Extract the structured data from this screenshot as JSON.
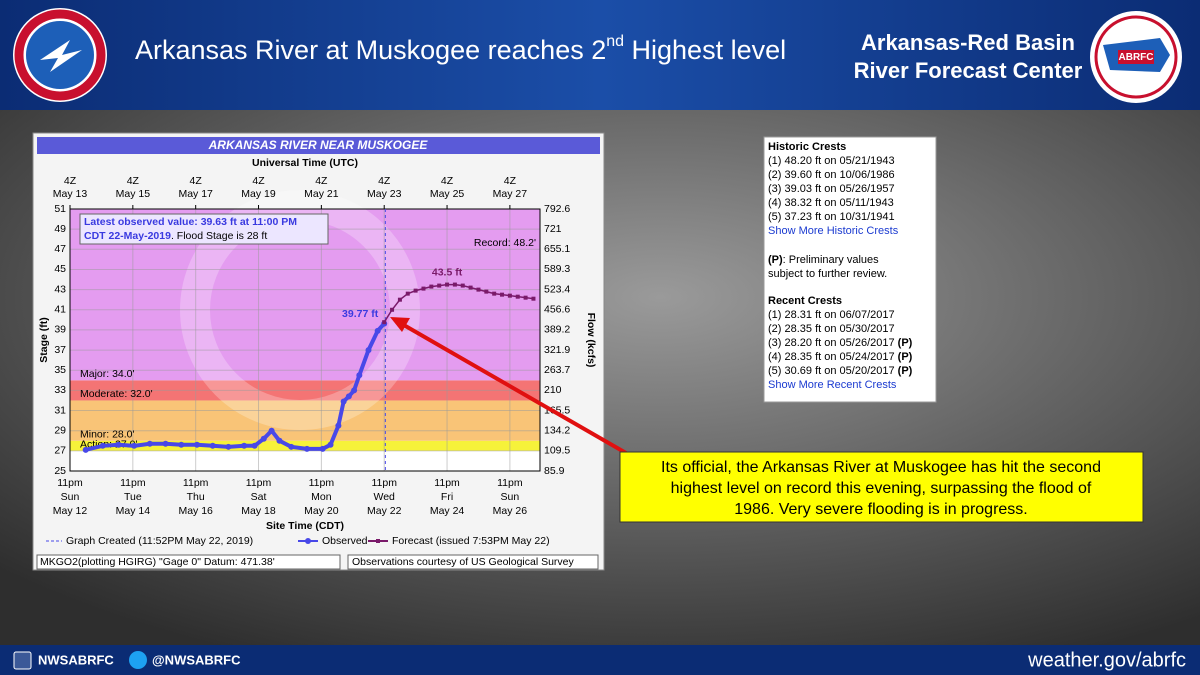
{
  "header": {
    "title": [
      "Arkansas River at Muskogee reaches 2",
      "nd",
      " Highest level"
    ],
    "center": [
      "Arkansas-Red Basin",
      "River Forecast Center"
    ],
    "logo_text": "ABRFC"
  },
  "chart_data": {
    "type": "line",
    "title": "ARKANSAS RIVER NEAR MUSKOGEE",
    "top_axis_label": "Universal Time (UTC)",
    "x_label": "Site Time (CDT)",
    "y_label": "Stage (ft)",
    "y2_label": "Flow (kcfs)",
    "xlim": [
      "2019-05-12T23:00-05:00",
      "2019-05-27T22:00-05:00"
    ],
    "xticks": [
      {
        "value": "2019-05-12T23:00-05:00",
        "label": [
          "11pm",
          "Sun",
          "May 12"
        ]
      },
      {
        "value": "2019-05-14T23:00-05:00",
        "label": [
          "11pm",
          "Tue",
          "May 14"
        ]
      },
      {
        "value": "2019-05-16T23:00-05:00",
        "label": [
          "11pm",
          "Thu",
          "May 16"
        ]
      },
      {
        "value": "2019-05-18T23:00-05:00",
        "label": [
          "11pm",
          "Sat",
          "May 18"
        ]
      },
      {
        "value": "2019-05-20T23:00-05:00",
        "label": [
          "11pm",
          "Mon",
          "May 20"
        ]
      },
      {
        "value": "2019-05-22T23:00-05:00",
        "label": [
          "11pm",
          "Wed",
          "May 22"
        ]
      },
      {
        "value": "2019-05-24T23:00-05:00",
        "label": [
          "11pm",
          "Fri",
          "May 24"
        ]
      },
      {
        "value": "2019-05-26T23:00-05:00",
        "label": [
          "11pm",
          "Sun",
          "May 26"
        ]
      }
    ],
    "top_xticks": [
      {
        "value": "2019-05-13T04:00Z",
        "label": [
          "4Z",
          "May 13"
        ]
      },
      {
        "value": "2019-05-15T04:00Z",
        "label": [
          "4Z",
          "May 15"
        ]
      },
      {
        "value": "2019-05-17T04:00Z",
        "label": [
          "4Z",
          "May 17"
        ]
      },
      {
        "value": "2019-05-19T04:00Z",
        "label": [
          "4Z",
          "May 19"
        ]
      },
      {
        "value": "2019-05-21T04:00Z",
        "label": [
          "4Z",
          "May 21"
        ]
      },
      {
        "value": "2019-05-23T04:00Z",
        "label": [
          "4Z",
          "May 23"
        ]
      },
      {
        "value": "2019-05-25T04:00Z",
        "label": [
          "4Z",
          "May 25"
        ]
      },
      {
        "value": "2019-05-27T04:00Z",
        "label": [
          "4Z",
          "May 27"
        ]
      }
    ],
    "ylim": [
      25,
      51
    ],
    "yticks": [
      25,
      27,
      29,
      31,
      33,
      35,
      37,
      39,
      41,
      43,
      45,
      47,
      49,
      51
    ],
    "y2ticks": [
      85.9,
      109.5,
      134.2,
      165.5,
      210.0,
      263.7,
      321.9,
      389.2,
      456.6,
      523.4,
      589.3,
      655.1,
      721.0,
      792.6
    ],
    "grid": true,
    "thresholds": [
      {
        "label": "Action: 27.0'",
        "value": 27,
        "color": "#f6f23a"
      },
      {
        "label": "Minor: 28.0'",
        "value": 28,
        "color": "#f9c477"
      },
      {
        "label": "Moderate: 32.0'",
        "value": 32,
        "color": "#f47474"
      },
      {
        "label": "Major: 34.0'",
        "value": 34,
        "color": "#e49cf0"
      }
    ],
    "record": {
      "label": "Record: 48.2'",
      "value": 48.2
    },
    "info": [
      "Latest observed value: 39.63 ft at 11:00 PM",
      "CDT 22-May-2019",
      ". Flood Stage is 28 ft"
    ],
    "created": {
      "label": "Graph Created (11:52PM May 22, 2019)",
      "x": "2019-05-22T23:52-05:00"
    },
    "series": [
      {
        "name": "Observed",
        "color": "#4848e8",
        "x": [
          "2019-05-13T11:00-05:00",
          "2019-05-14T00:00-05:00",
          "2019-05-14T12:00-05:00",
          "2019-05-15T00:00-05:00",
          "2019-05-15T12:00-05:00",
          "2019-05-16T00:00-05:00",
          "2019-05-16T12:00-05:00",
          "2019-05-17T00:00-05:00",
          "2019-05-17T12:00-05:00",
          "2019-05-18T00:00-05:00",
          "2019-05-18T12:00-05:00",
          "2019-05-18T20:00-05:00",
          "2019-05-19T03:00-05:00",
          "2019-05-19T09:00-05:00",
          "2019-05-19T15:00-05:00",
          "2019-05-20T00:00-05:00",
          "2019-05-20T12:00-05:00",
          "2019-05-21T00:00-05:00",
          "2019-05-21T06:00-05:00",
          "2019-05-21T12:00-05:00",
          "2019-05-21T16:00-05:00",
          "2019-05-21T20:00-05:00",
          "2019-05-22T00:00-05:00",
          "2019-05-22T04:00-05:00",
          "2019-05-22T11:00-05:00",
          "2019-05-22T18:00-05:00",
          "2019-05-22T23:00-05:00"
        ],
        "values": [
          27.1,
          27.5,
          27.6,
          27.5,
          27.7,
          27.7,
          27.6,
          27.6,
          27.5,
          27.4,
          27.5,
          27.5,
          28.2,
          29.0,
          28.0,
          27.4,
          27.2,
          27.2,
          27.6,
          29.5,
          31.9,
          32.4,
          33.0,
          34.5,
          37.0,
          38.9,
          39.63
        ]
      },
      {
        "name": "Forecast (issued 7:53PM May 22)",
        "color": "#7a1a6a",
        "x": [
          "2019-05-22T23:00-05:00",
          "2019-05-23T05:00-05:00",
          "2019-05-23T11:00-05:00",
          "2019-05-23T17:00-05:00",
          "2019-05-23T23:00-05:00",
          "2019-05-24T05:00-05:00",
          "2019-05-24T11:00-05:00",
          "2019-05-24T17:00-05:00",
          "2019-05-24T23:00-05:00",
          "2019-05-25T05:00-05:00",
          "2019-05-25T11:00-05:00",
          "2019-05-25T17:00-05:00",
          "2019-05-25T23:00-05:00",
          "2019-05-26T05:00-05:00",
          "2019-05-26T11:00-05:00",
          "2019-05-26T17:00-05:00",
          "2019-05-26T23:00-05:00",
          "2019-05-27T05:00-05:00",
          "2019-05-27T11:00-05:00",
          "2019-05-27T17:00-05:00"
        ],
        "values": [
          39.77,
          41.0,
          42.0,
          42.6,
          42.9,
          43.1,
          43.3,
          43.4,
          43.5,
          43.5,
          43.4,
          43.2,
          43.0,
          42.8,
          42.6,
          42.5,
          42.4,
          42.3,
          42.2,
          42.1
        ],
        "value_labels": [
          "39.77 ft",
          null,
          null,
          null,
          null,
          null,
          null,
          null,
          "43.5 ft",
          null,
          null,
          null,
          null,
          null,
          null,
          null,
          null,
          null,
          null,
          null
        ]
      }
    ],
    "footer": [
      "MKGO2(plotting HGIRG) \"Gage 0\" Datum: 471.38'",
      "Observations courtesy of US Geological Survey"
    ]
  },
  "crests": {
    "historic": {
      "title": "Historic Crests",
      "items": [
        "(1) 48.20 ft on 05/21/1943",
        "(2) 39.60 ft on 10/06/1986",
        "(3) 39.03 ft on 05/26/1957",
        "(4) 38.32 ft on 05/11/1943",
        "(5) 37.23 ft on 10/31/1941"
      ],
      "link": "Show More Historic Crests"
    },
    "note": [
      "(P)",
      ": Preliminary values",
      "subject to further review."
    ],
    "recent": {
      "title": "Recent Crests",
      "items": [
        {
          "text": "(1) 28.31 ft on 06/07/2017"
        },
        {
          "text": "(2) 28.35 ft on 05/30/2017"
        },
        {
          "text": "(3) 28.20 ft on 05/26/2017",
          "flag": "(P)"
        },
        {
          "text": "(4) 28.35 ft on 05/24/2017",
          "flag": "(P)"
        },
        {
          "text": "(5) 30.69 ft on 05/20/2017",
          "flag": "(P)"
        }
      ],
      "link": "Show More Recent Crests"
    }
  },
  "callout": [
    "Its official, the Arkansas River at Muskogee has hit the second",
    "highest level on record this evening, surpassing the flood of",
    "1986.  Very severe flooding is in progress."
  ],
  "footer": {
    "facebook": "NWSABRFC",
    "twitter": "@NWSABRFC",
    "site": "weather.gov/abrfc"
  }
}
